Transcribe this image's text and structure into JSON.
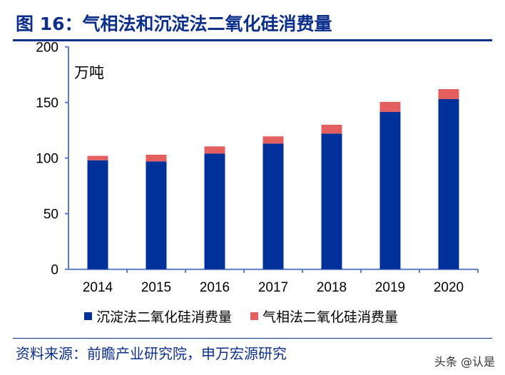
{
  "title": "图 16：气相法和沉淀法二氧化硅消费量",
  "source": "资料来源：前瞻产业研究院，申万宏源研究",
  "watermark": "头条 @认是",
  "chart_data": {
    "type": "bar",
    "stacked": true,
    "title": "",
    "ylabel": "万吨",
    "ylim": [
      0,
      200
    ],
    "yticks": [
      0,
      50,
      100,
      150,
      200
    ],
    "categories": [
      "2014",
      "2015",
      "2016",
      "2017",
      "2018",
      "2019",
      "2020"
    ],
    "series": [
      {
        "name": "沉淀法二氧化硅消费量",
        "color": "#00309a",
        "values": [
          98,
          97,
          104,
          113,
          122,
          141.5,
          153
        ]
      },
      {
        "name": "气相法二氧化硅消费量",
        "color": "#e46060",
        "values": [
          4,
          6,
          6.5,
          6.5,
          8,
          9,
          9
        ]
      }
    ],
    "legend": "bottom",
    "grid": false
  }
}
